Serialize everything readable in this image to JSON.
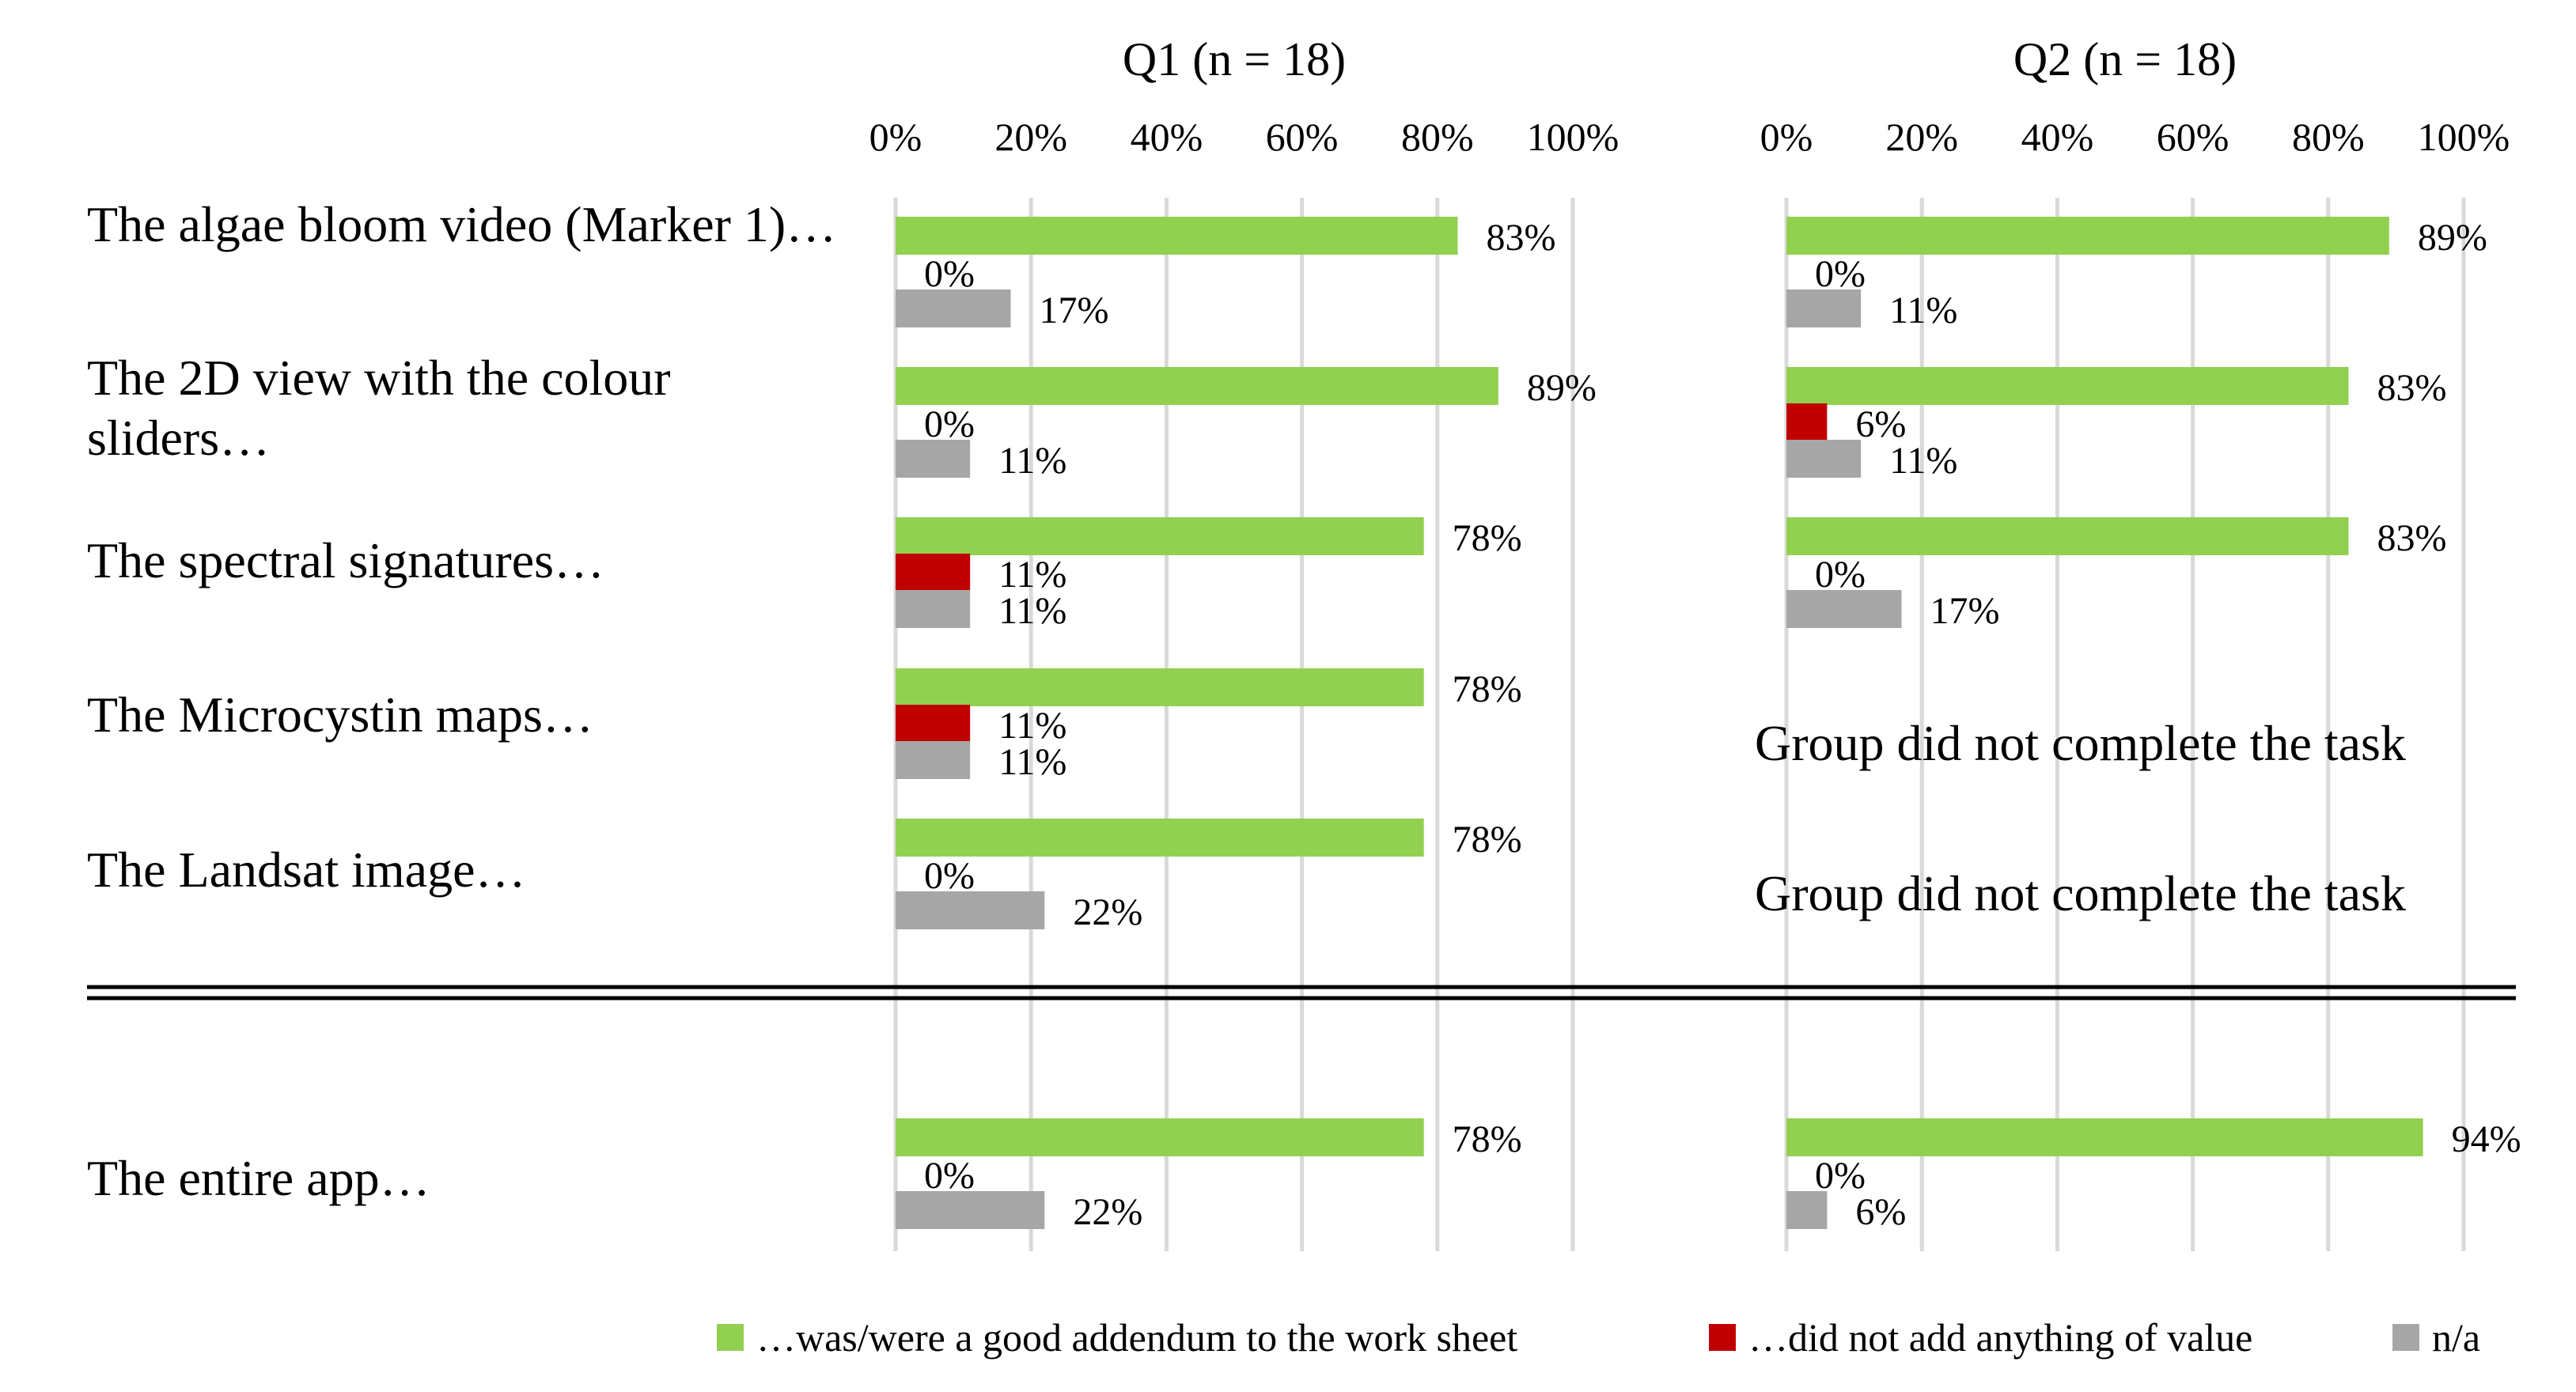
{
  "chart_data": {
    "type": "bar",
    "orientation": "horizontal",
    "panels": [
      {
        "title": "Q1 (n = 18)",
        "xlim": [
          0,
          100
        ],
        "ticks": [
          "0%",
          "20%",
          "40%",
          "60%",
          "80%",
          "100%"
        ],
        "rows": [
          {
            "values": [
              83,
              0,
              17
            ],
            "labels": [
              "83%",
              "0%",
              "17%"
            ]
          },
          {
            "values": [
              89,
              0,
              11
            ],
            "labels": [
              "89%",
              "0%",
              "11%"
            ]
          },
          {
            "values": [
              78,
              11,
              11
            ],
            "labels": [
              "78%",
              "11%",
              "11%"
            ]
          },
          {
            "values": [
              78,
              11,
              11
            ],
            "labels": [
              "78%",
              "11%",
              "11%"
            ]
          },
          {
            "values": [
              78,
              0,
              22
            ],
            "labels": [
              "78%",
              "0%",
              "22%"
            ]
          },
          {
            "values": [
              78,
              0,
              22
            ],
            "labels": [
              "78%",
              "0%",
              "22%"
            ]
          }
        ]
      },
      {
        "title": "Q2  (n = 18)",
        "xlim": [
          0,
          100
        ],
        "ticks": [
          "0%",
          "20%",
          "40%",
          "60%",
          "80%",
          "100%"
        ],
        "rows": [
          {
            "values": [
              89,
              0,
              11
            ],
            "labels": [
              "89%",
              "0%",
              "11%"
            ]
          },
          {
            "values": [
              83,
              6,
              11
            ],
            "labels": [
              "83%",
              "6%",
              "11%"
            ]
          },
          {
            "values": [
              83,
              0,
              17
            ],
            "labels": [
              "83%",
              "0%",
              "17%"
            ]
          },
          {
            "note": "Group did not complete the task"
          },
          {
            "note": "Group did not complete the task"
          },
          {
            "values": [
              94,
              0,
              6
            ],
            "labels": [
              "94%",
              "0%",
              "6%"
            ]
          }
        ]
      }
    ],
    "categories": [
      "The algae bloom video (Marker 1)…",
      "The 2D view with the colour sliders…",
      "The spectral signatures…",
      "The Microcystin maps…",
      "The Landsat image…",
      "The entire app…"
    ],
    "series": [
      {
        "name": "…was/were a good addendum to the work sheet",
        "color": "#92d050"
      },
      {
        "name": "…did not add anything of value",
        "color": "#c00000"
      },
      {
        "name": "n/a",
        "color": "#a6a6a6"
      }
    ]
  }
}
